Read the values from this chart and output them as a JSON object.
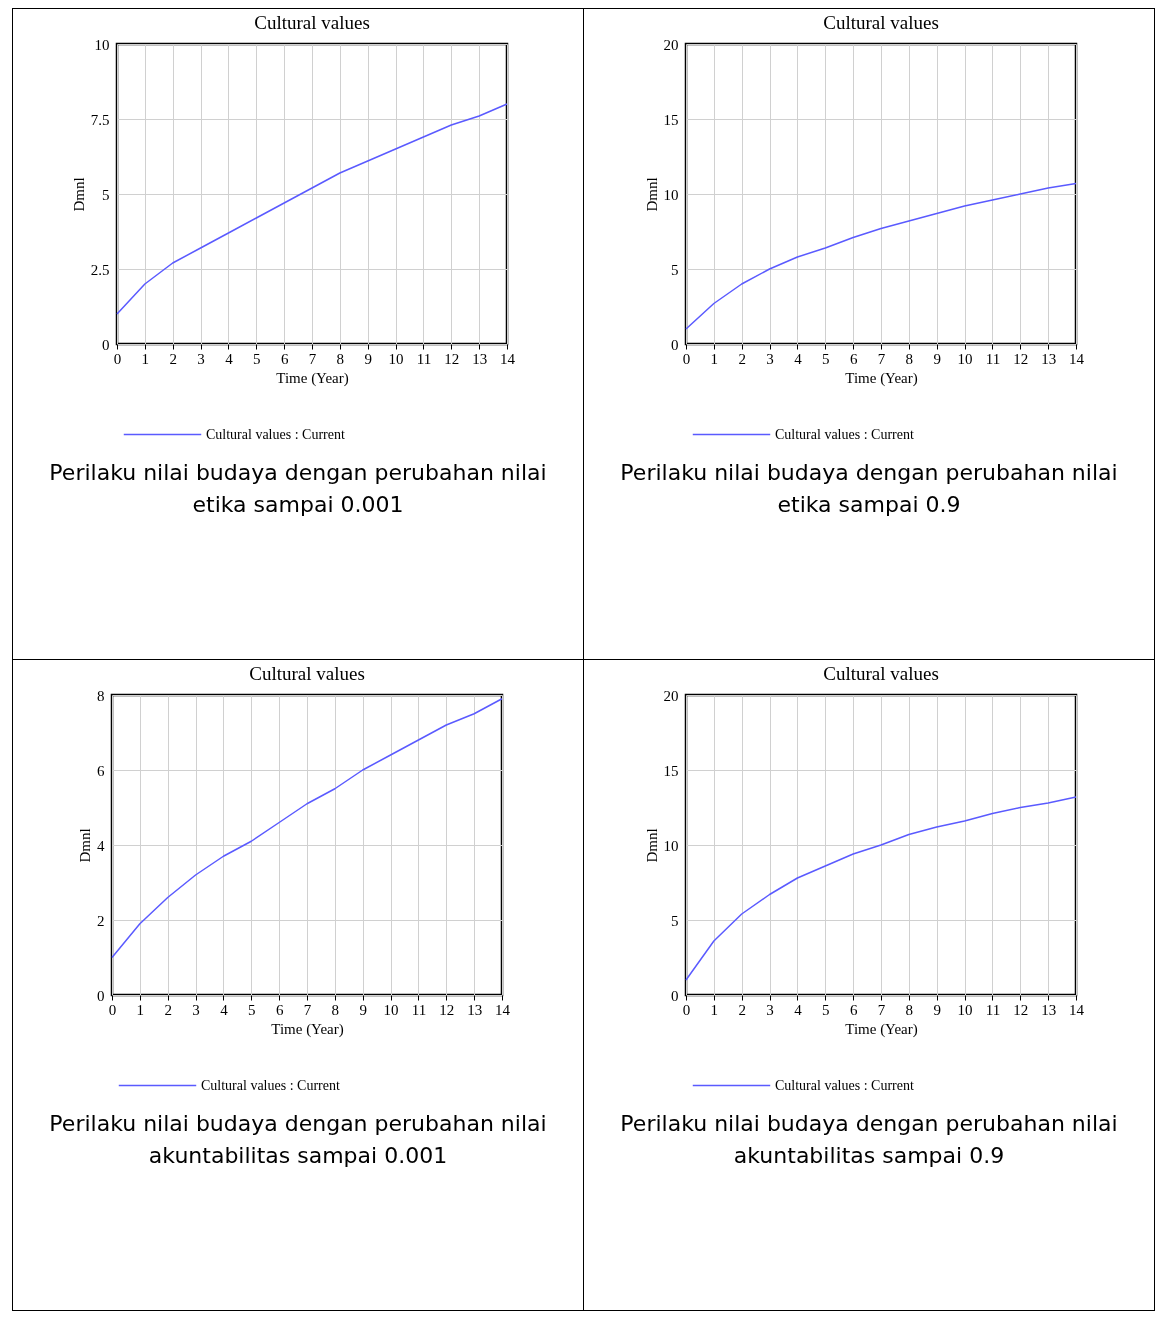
{
  "chart_data": [
    {
      "type": "line",
      "title": "Cultural values",
      "xlabel": "Time (Year)",
      "ylabel": "Dmnl",
      "x": [
        0,
        1,
        2,
        3,
        4,
        5,
        6,
        7,
        8,
        9,
        10,
        11,
        12,
        13,
        14
      ],
      "xlim": [
        0,
        14
      ],
      "xticks": [
        0,
        1,
        2,
        3,
        4,
        5,
        6,
        7,
        8,
        9,
        10,
        11,
        12,
        13,
        14
      ],
      "ylim": [
        0,
        10
      ],
      "yticks": [
        0,
        2.5,
        5,
        7.5,
        10
      ],
      "grid": true,
      "legend": "bottom",
      "series": [
        {
          "name": "Cultural values : Current",
          "color": "#5a5aff",
          "values": [
            1.0,
            2.0,
            2.7,
            3.2,
            3.7,
            4.2,
            4.7,
            5.2,
            5.7,
            6.1,
            6.5,
            6.9,
            7.3,
            7.6,
            8.0
          ]
        }
      ],
      "annotations": [
        "Perilaku nilai budaya dengan perubahan nilai etika sampai 0.001"
      ]
    },
    {
      "type": "line",
      "title": "Cultural values",
      "xlabel": "Time (Year)",
      "ylabel": "Dmnl",
      "x": [
        0,
        1,
        2,
        3,
        4,
        5,
        6,
        7,
        8,
        9,
        10,
        11,
        12,
        13,
        14
      ],
      "xlim": [
        0,
        14
      ],
      "xticks": [
        0,
        1,
        2,
        3,
        4,
        5,
        6,
        7,
        8,
        9,
        10,
        11,
        12,
        13,
        14
      ],
      "ylim": [
        0,
        20
      ],
      "yticks": [
        0,
        5,
        10,
        15,
        20
      ],
      "grid": true,
      "legend": "bottom",
      "series": [
        {
          "name": "Cultural values : Current",
          "color": "#5a5aff",
          "values": [
            1.0,
            2.7,
            4.0,
            5.0,
            5.8,
            6.4,
            7.1,
            7.7,
            8.2,
            8.7,
            9.2,
            9.6,
            10.0,
            10.4,
            10.7
          ]
        }
      ],
      "annotations": [
        "Perilaku nilai budaya dengan perubahan nilai etika sampai 0.9"
      ]
    },
    {
      "type": "line",
      "title": "Cultural values",
      "xlabel": "Time (Year)",
      "ylabel": "Dmnl",
      "x": [
        0,
        1,
        2,
        3,
        4,
        5,
        6,
        7,
        8,
        9,
        10,
        11,
        12,
        13,
        14
      ],
      "xlim": [
        0,
        14
      ],
      "xticks": [
        0,
        1,
        2,
        3,
        4,
        5,
        6,
        7,
        8,
        9,
        10,
        11,
        12,
        13,
        14
      ],
      "ylim": [
        0,
        8
      ],
      "yticks": [
        0,
        2,
        4,
        6,
        8
      ],
      "grid": true,
      "legend": "bottom",
      "series": [
        {
          "name": "Cultural values : Current",
          "color": "#5a5aff",
          "values": [
            1.0,
            1.9,
            2.6,
            3.2,
            3.7,
            4.1,
            4.6,
            5.1,
            5.5,
            6.0,
            6.4,
            6.8,
            7.2,
            7.5,
            7.9
          ]
        }
      ],
      "annotations": [
        "Perilaku nilai budaya dengan perubahan nilai akuntabilitas sampai 0.001"
      ]
    },
    {
      "type": "line",
      "title": "Cultural values",
      "xlabel": "Time (Year)",
      "ylabel": "Dmnl",
      "x": [
        0,
        1,
        2,
        3,
        4,
        5,
        6,
        7,
        8,
        9,
        10,
        11,
        12,
        13,
        14
      ],
      "xlim": [
        0,
        14
      ],
      "xticks": [
        0,
        1,
        2,
        3,
        4,
        5,
        6,
        7,
        8,
        9,
        10,
        11,
        12,
        13,
        14
      ],
      "ylim": [
        0,
        20
      ],
      "yticks": [
        0,
        5,
        10,
        15,
        20
      ],
      "grid": true,
      "legend": "bottom",
      "series": [
        {
          "name": "Cultural values : Current",
          "color": "#5a5aff",
          "values": [
            1.0,
            3.6,
            5.4,
            6.7,
            7.8,
            8.6,
            9.4,
            10.0,
            10.7,
            11.2,
            11.6,
            12.1,
            12.5,
            12.8,
            13.2
          ]
        }
      ],
      "annotations": [
        "Perilaku nilai budaya dengan perubahan nilai akuntabilitas sampai 0.9"
      ]
    }
  ]
}
